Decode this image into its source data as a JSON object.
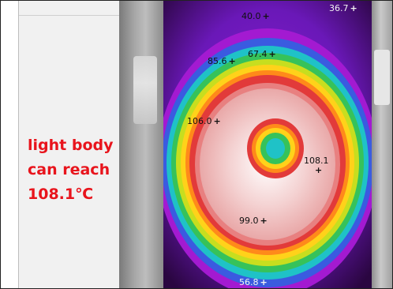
{
  "caption": {
    "line1": "light body",
    "line2": "can reach",
    "line3": "108.1℃"
  },
  "thermal": {
    "readings": [
      {
        "id": "top",
        "value": "40.0"
      },
      {
        "id": "top-right",
        "value": "36.7"
      },
      {
        "id": "upper-left",
        "value": "85.6"
      },
      {
        "id": "upper-mid",
        "value": "67.4"
      },
      {
        "id": "left-mid",
        "value": "106.0"
      },
      {
        "id": "right-mid",
        "value": "108.1"
      },
      {
        "id": "lower",
        "value": "99.0"
      },
      {
        "id": "bottom",
        "value": "56.8"
      }
    ],
    "marker_symbol": "+",
    "colors": {
      "hot": "#ffffff",
      "warm": "#e23a3a",
      "mid": "#ffd21a",
      "cool": "#23c07a",
      "cold": "#7a1ac9"
    }
  }
}
